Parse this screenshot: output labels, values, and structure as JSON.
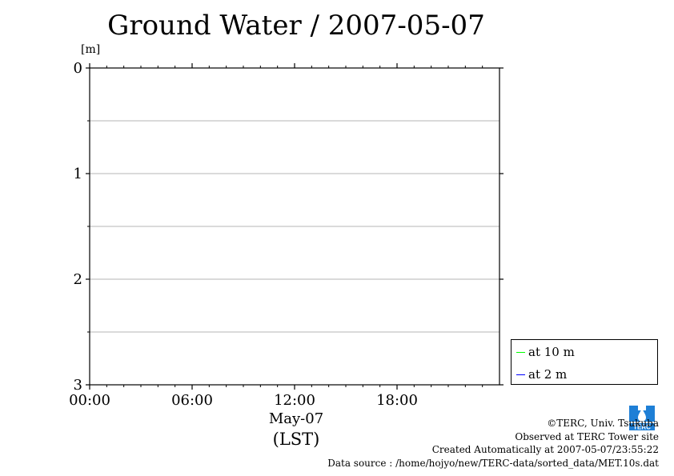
{
  "title": "Ground Water / 2007-05-07",
  "chart_data": {
    "type": "line",
    "title": "Ground Water / 2007-05-07",
    "ylabel": "[m]",
    "xlabel": "May-07",
    "xlabel2": "(LST)",
    "y_inverted": true,
    "ylim": [
      0,
      3
    ],
    "y_ticks": [
      "0",
      "1",
      "2",
      "3"
    ],
    "y_minor_grid": [
      0.5,
      1,
      1.5,
      2,
      2.5
    ],
    "xlim_hours": [
      0,
      24
    ],
    "x_ticks": [
      {
        "hour": 0,
        "label": "00:00"
      },
      {
        "hour": 6,
        "label": "06:00"
      },
      {
        "hour": 12,
        "label": "12:00"
      },
      {
        "hour": 18,
        "label": "18:00"
      }
    ],
    "grid": "horizontal",
    "legend_position": "bottom-right outside",
    "series": [
      {
        "name": "at 10 m",
        "color": "#00ff00",
        "values": []
      },
      {
        "name": "at 2 m",
        "color": "#0000ff",
        "values": []
      }
    ]
  },
  "credits": {
    "copyright": "©TERC, Univ. Tsukuba",
    "observed": "Observed at TERC Tower site",
    "created": "Created Automatically at 2007-05-07/23:55:22",
    "source": "Data source : /home/hojyo/new/TERC-data/sorted_data/MET.10s.dat"
  },
  "logo": {
    "icon": "terc-logo-icon",
    "text": "TERC",
    "color": "#1e7fd6"
  }
}
